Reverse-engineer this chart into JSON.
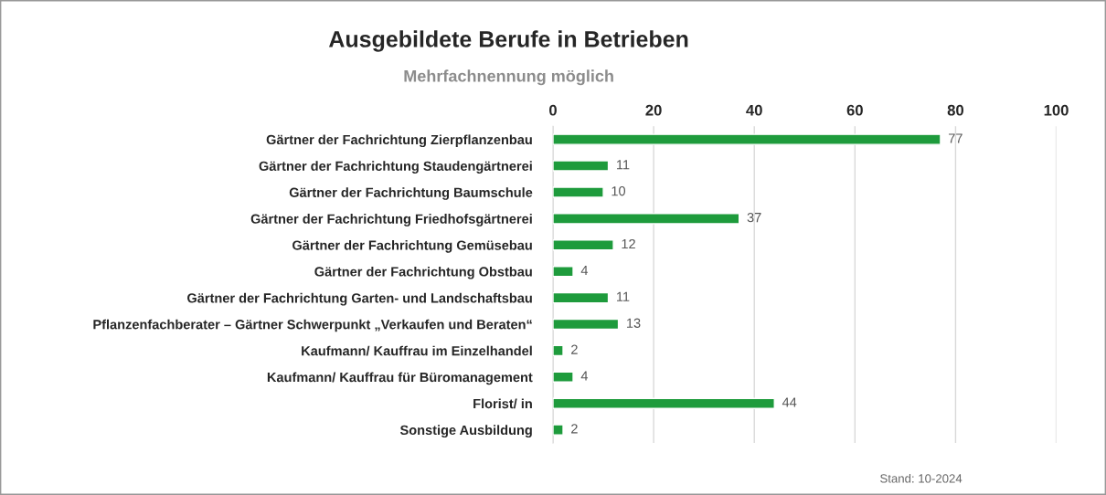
{
  "chart_data": {
    "type": "bar",
    "orientation": "horizontal",
    "title": "Ausgebildete Berufe in Betrieben",
    "subtitle": "Mehrfachnennung möglich",
    "categories": [
      "Gärtner der Fachrichtung Zierpflanzenbau",
      "Gärtner der Fachrichtung Staudengärtnerei",
      "Gärtner der Fachrichtung Baumschule",
      "Gärtner der Fachrichtung Friedhofsgärtnerei",
      "Gärtner der Fachrichtung Gemüsebau",
      "Gärtner der Fachrichtung Obstbau",
      "Gärtner der Fachrichtung Garten- und Landschaftsbau",
      "Pflanzenfachberater – Gärtner Schwerpunkt „Verkaufen und Beraten“",
      "Kaufmann/ Kauffrau im Einzelhandel",
      "Kaufmann/ Kauffrau für Büromanagement",
      "Florist/ in",
      "Sonstige Ausbildung"
    ],
    "values": [
      77,
      11,
      10,
      37,
      12,
      4,
      11,
      13,
      2,
      4,
      44,
      2
    ],
    "color": "#1e9b3c",
    "xlim": [
      0,
      100
    ],
    "xticks": [
      0,
      20,
      40,
      60,
      80,
      100
    ],
    "grid": "x",
    "data_labels": true,
    "annotations": [
      "Stand: 10-2024"
    ]
  }
}
